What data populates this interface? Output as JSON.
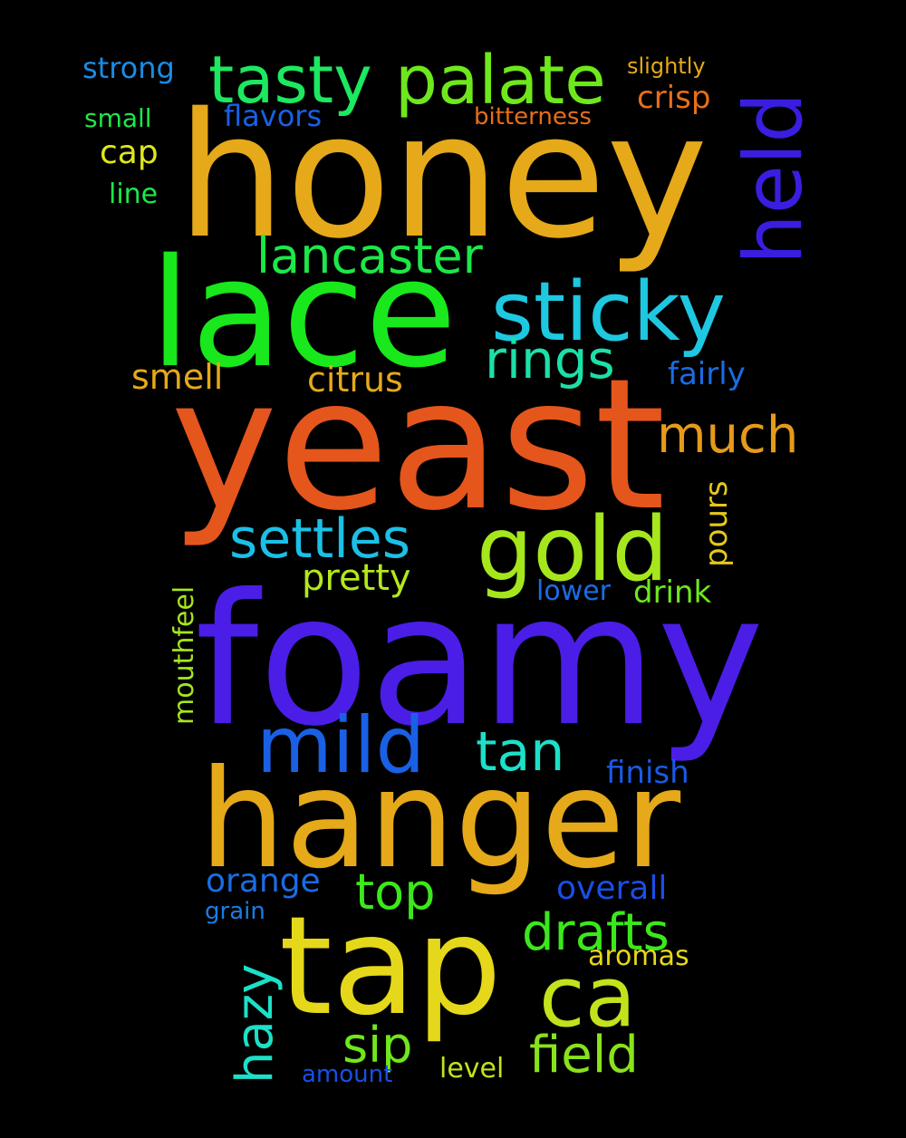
{
  "background": "#000000",
  "words": [
    {
      "text": "honey",
      "color": "#e5a91a",
      "rotated": false
    },
    {
      "text": "yeast",
      "color": "#e4561c",
      "rotated": false
    },
    {
      "text": "foamy",
      "color": "#4a1ee6",
      "rotated": false
    },
    {
      "text": "lace",
      "color": "#18e81c",
      "rotated": false
    },
    {
      "text": "hanger",
      "color": "#e5a91a",
      "rotated": false
    },
    {
      "text": "tap",
      "color": "#e5d81a",
      "rotated": false
    },
    {
      "text": "sticky",
      "color": "#1ec8e0",
      "rotated": false
    },
    {
      "text": "gold",
      "color": "#a6e61c",
      "rotated": false
    },
    {
      "text": "held",
      "color": "#3a1ee0",
      "rotated": true
    },
    {
      "text": "palate",
      "color": "#6ee81c",
      "rotated": false
    },
    {
      "text": "tasty",
      "color": "#1ce860",
      "rotated": false
    },
    {
      "text": "mild",
      "color": "#1a60e5",
      "rotated": false
    },
    {
      "text": "ca",
      "color": "#c4e21c",
      "rotated": false
    },
    {
      "text": "lancaster",
      "color": "#1ce848",
      "rotated": false
    },
    {
      "text": "settles",
      "color": "#1cbfe6",
      "rotated": false
    },
    {
      "text": "rings",
      "color": "#1ce0a8",
      "rotated": false
    },
    {
      "text": "much",
      "color": "#e59a1a",
      "rotated": false
    },
    {
      "text": "tan",
      "color": "#1ce0c8",
      "rotated": false
    },
    {
      "text": "drafts",
      "color": "#3ce81c",
      "rotated": false
    },
    {
      "text": "field",
      "color": "#88e21c",
      "rotated": false
    },
    {
      "text": "top",
      "color": "#3ce81c",
      "rotated": false
    },
    {
      "text": "hazy",
      "color": "#1ce0c8",
      "rotated": true
    },
    {
      "text": "sip",
      "color": "#6ee81c",
      "rotated": false
    },
    {
      "text": "pretty",
      "color": "#b4e81c",
      "rotated": false
    },
    {
      "text": "orange",
      "color": "#1a6ce5",
      "rotated": false
    },
    {
      "text": "citrus",
      "color": "#e5a91a",
      "rotated": false
    },
    {
      "text": "smell",
      "color": "#e5a91a",
      "rotated": false
    },
    {
      "text": "finish",
      "color": "#1a5ae5",
      "rotated": false
    },
    {
      "text": "overall",
      "color": "#1a4ee5",
      "rotated": false
    },
    {
      "text": "fairly",
      "color": "#1a6ce5",
      "rotated": false
    },
    {
      "text": "pours",
      "color": "#e5c81a",
      "rotated": true
    },
    {
      "text": "mouthfeel",
      "color": "#a6e61c",
      "rotated": true
    },
    {
      "text": "drink",
      "color": "#6ee81c",
      "rotated": false
    },
    {
      "text": "lower",
      "color": "#1a6ce5",
      "rotated": false
    },
    {
      "text": "crisp",
      "color": "#e56f1a",
      "rotated": false
    },
    {
      "text": "flavors",
      "color": "#1a60e5",
      "rotated": false
    },
    {
      "text": "cap",
      "color": "#dde81c",
      "rotated": false
    },
    {
      "text": "strong",
      "color": "#1a8ce5",
      "rotated": false
    },
    {
      "text": "aromas",
      "color": "#e5d81a",
      "rotated": false
    },
    {
      "text": "bitterness",
      "color": "#e56f1a",
      "rotated": false
    },
    {
      "text": "small",
      "color": "#1ce848",
      "rotated": false
    },
    {
      "text": "line",
      "color": "#1ce848",
      "rotated": false
    },
    {
      "text": "slightly",
      "color": "#e5a91a",
      "rotated": false
    },
    {
      "text": "grain",
      "color": "#1a7ce5",
      "rotated": false
    },
    {
      "text": "level",
      "color": "#c4e21c",
      "rotated": false
    },
    {
      "text": "amount",
      "color": "#1a4ee5",
      "rotated": false
    }
  ]
}
